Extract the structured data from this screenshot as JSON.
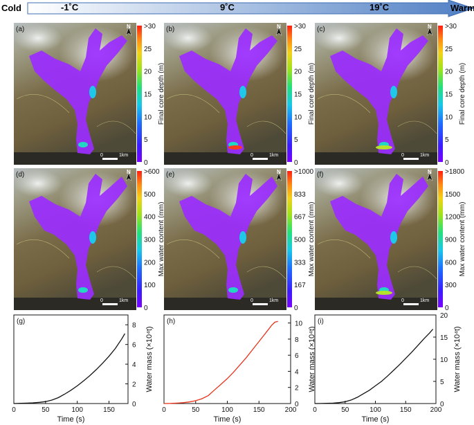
{
  "header": {
    "cold_label": "Cold",
    "warm_label": "Warm",
    "temps": [
      "-1˚C",
      "9˚C",
      "19˚C"
    ]
  },
  "colors": {
    "arrow_start": "#ffffff",
    "arrow_end": "#4f7fc4",
    "flow_purple": "#9b2dff",
    "line_black": "#111111",
    "line_red": "#e8341c"
  },
  "map_panels": [
    {
      "label": "(a)",
      "north": "N",
      "scale": "1km",
      "scale_zero": "0"
    },
    {
      "label": "(b)",
      "north": "N",
      "scale": "1km",
      "scale_zero": "0"
    },
    {
      "label": "(c)",
      "north": "N",
      "scale": "1km",
      "scale_zero": "0"
    },
    {
      "label": "(d)",
      "north": "N",
      "scale": "1km",
      "scale_zero": "0"
    },
    {
      "label": "(e)",
      "north": "N",
      "scale": "1km",
      "scale_zero": "0"
    },
    {
      "label": "(f)",
      "north": "N",
      "scale": "1km",
      "scale_zero": "0"
    }
  ],
  "colorbars": [
    {
      "title": "Final core depth (m)",
      "ticks": [
        ">30",
        "25",
        "20",
        "15",
        "10",
        "5",
        "0"
      ]
    },
    {
      "title": "Final core depth (m)",
      "ticks": [
        ">30",
        "25",
        "20",
        "15",
        "10",
        "5",
        "0"
      ]
    },
    {
      "title": "Final core depth (m)",
      "ticks": [
        ">30",
        "25",
        "20",
        "15",
        "10",
        "5",
        "0"
      ]
    },
    {
      "title": "Max water content (mm)",
      "ticks": [
        ">600",
        "500",
        "400",
        "300",
        "200",
        "100",
        "0"
      ]
    },
    {
      "title": "Max water content (mm)",
      "ticks": [
        ">1000",
        "833",
        "667",
        "500",
        "333",
        "167",
        "0"
      ]
    },
    {
      "title": "Max water content (mm)",
      "ticks": [
        ">1800",
        "1500",
        "1200",
        "900",
        "600",
        "300",
        "0"
      ]
    }
  ],
  "chart_data": [
    {
      "type": "line",
      "label": "(g)",
      "title": "",
      "xlabel": "Time (s)",
      "ylabel": "Water mass (×10⁴t)",
      "xlim": [
        0,
        180
      ],
      "ylim": [
        0,
        9
      ],
      "xticks": [
        "0",
        "50",
        "100",
        "150"
      ],
      "xtick_values": [
        0,
        50,
        100,
        150
      ],
      "yticks": [
        "0",
        "2",
        "4",
        "6",
        "8"
      ],
      "ytick_values": [
        0,
        2,
        4,
        6,
        8
      ],
      "series": [
        {
          "name": "-1˚C",
          "color": "#111111",
          "x": [
            0,
            10,
            20,
            30,
            40,
            50,
            60,
            70,
            80,
            90,
            100,
            110,
            120,
            130,
            140,
            150,
            160,
            170,
            175
          ],
          "y": [
            0,
            0.02,
            0.04,
            0.07,
            0.12,
            0.2,
            0.35,
            0.6,
            0.95,
            1.35,
            1.8,
            2.3,
            2.85,
            3.45,
            4.1,
            4.8,
            5.6,
            6.55,
            7.1
          ]
        }
      ]
    },
    {
      "type": "line",
      "label": "(h)",
      "title": "",
      "xlabel": "Time (s)",
      "ylabel": "Water mass (×10⁴t)",
      "xlim": [
        0,
        200
      ],
      "ylim": [
        0,
        11
      ],
      "xticks": [
        "0",
        "50",
        "100",
        "150",
        "200"
      ],
      "xtick_values": [
        0,
        50,
        100,
        150,
        200
      ],
      "yticks": [
        "0",
        "2",
        "4",
        "6",
        "8",
        "10"
      ],
      "ytick_values": [
        0,
        2,
        4,
        6,
        8,
        10
      ],
      "series": [
        {
          "name": "9˚C",
          "color": "#e8341c",
          "x": [
            0,
            10,
            20,
            30,
            40,
            50,
            60,
            70,
            80,
            90,
            100,
            110,
            120,
            130,
            140,
            150,
            160,
            170,
            175,
            180
          ],
          "y": [
            0,
            0.02,
            0.05,
            0.1,
            0.2,
            0.35,
            0.6,
            1.0,
            1.7,
            2.4,
            3.1,
            3.9,
            4.8,
            5.7,
            6.7,
            7.7,
            8.7,
            9.7,
            10.1,
            10.2
          ]
        }
      ]
    },
    {
      "type": "line",
      "label": "(i)",
      "title": "",
      "xlabel": "Time (s)",
      "ylabel": "Water mass (×10⁴t)",
      "xlim": [
        0,
        200
      ],
      "ylim": [
        0,
        20
      ],
      "xticks": [
        "0",
        "50",
        "100",
        "150",
        "200"
      ],
      "xtick_values": [
        0,
        50,
        100,
        150,
        200
      ],
      "yticks": [
        "0",
        "5",
        "10",
        "15",
        "20"
      ],
      "ytick_values": [
        0,
        5,
        10,
        15,
        20
      ],
      "series": [
        {
          "name": "19˚C",
          "color": "#111111",
          "x": [
            0,
            10,
            20,
            30,
            40,
            50,
            60,
            70,
            80,
            90,
            100,
            110,
            120,
            130,
            140,
            150,
            160,
            170,
            180,
            190,
            195
          ],
          "y": [
            0,
            0.02,
            0.05,
            0.1,
            0.2,
            0.4,
            0.8,
            1.4,
            2.2,
            3.0,
            4.0,
            5.0,
            6.2,
            7.5,
            8.8,
            10.2,
            11.6,
            13.1,
            14.6,
            16.0,
            16.8
          ]
        }
      ]
    }
  ]
}
